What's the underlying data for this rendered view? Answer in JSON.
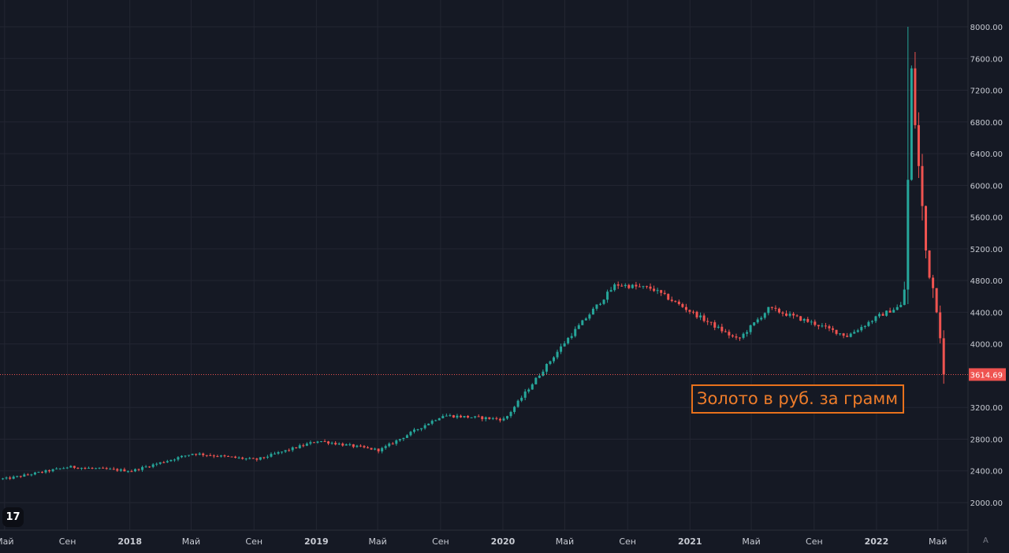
{
  "chart_data": {
    "type": "candlestick",
    "title": "",
    "annotation": "Золото в руб. за грамм",
    "y_ticks": [
      "8000.00",
      "7600.00",
      "7200.00",
      "6800.00",
      "6400.00",
      "6000.00",
      "5600.00",
      "5200.00",
      "4800.00",
      "4400.00",
      "4000.00",
      "3200.00",
      "2800.00",
      "2400.00",
      "2000.00"
    ],
    "y_tick_values": [
      8000,
      7600,
      7200,
      6800,
      6400,
      6000,
      5600,
      5200,
      4800,
      4400,
      4000,
      3200,
      2800,
      2400,
      2000
    ],
    "ylim": [
      1700,
      8300
    ],
    "x_ticks": [
      {
        "label": "Май",
        "date": "2017-05-01"
      },
      {
        "label": "Сен",
        "date": "2017-09-01"
      },
      {
        "label": "2018",
        "date": "2018-01-01"
      },
      {
        "label": "Май",
        "date": "2018-05-01"
      },
      {
        "label": "Сен",
        "date": "2018-09-01"
      },
      {
        "label": "2019",
        "date": "2019-01-01"
      },
      {
        "label": "Май",
        "date": "2019-05-01"
      },
      {
        "label": "Сен",
        "date": "2019-09-01"
      },
      {
        "label": "2020",
        "date": "2020-01-01"
      },
      {
        "label": "Май",
        "date": "2020-05-01"
      },
      {
        "label": "Сен",
        "date": "2020-09-01"
      },
      {
        "label": "2021",
        "date": "2021-01-01"
      },
      {
        "label": "Май",
        "date": "2021-05-01"
      },
      {
        "label": "Сен",
        "date": "2021-09-01"
      },
      {
        "label": "2022",
        "date": "2022-01-01"
      },
      {
        "label": "Май",
        "date": "2022-05-01"
      }
    ],
    "x_range": [
      "2017-04-22",
      "2022-06-29"
    ],
    "last_price": "3614.69",
    "last_price_value": 3614.69,
    "key_points": [
      {
        "date": "2017-04-30",
        "close": 2300
      },
      {
        "date": "2017-09-01",
        "close": 2450
      },
      {
        "date": "2018-01-01",
        "close": 2400
      },
      {
        "date": "2018-05-01",
        "close": 2620
      },
      {
        "date": "2018-09-01",
        "close": 2540
      },
      {
        "date": "2019-01-01",
        "close": 2780
      },
      {
        "date": "2019-05-01",
        "close": 2660
      },
      {
        "date": "2019-09-01",
        "close": 3100
      },
      {
        "date": "2020-01-01",
        "close": 3050
      },
      {
        "date": "2020-03-01",
        "close": 3550
      },
      {
        "date": "2020-05-01",
        "close": 4050
      },
      {
        "date": "2020-08-05",
        "close": 4750
      },
      {
        "date": "2020-10-15",
        "close": 4700
      },
      {
        "date": "2021-01-01",
        "close": 4400
      },
      {
        "date": "2021-04-01",
        "close": 4050
      },
      {
        "date": "2021-06-01",
        "close": 4450
      },
      {
        "date": "2021-09-01",
        "close": 4250
      },
      {
        "date": "2021-11-01",
        "close": 4100
      },
      {
        "date": "2022-01-01",
        "close": 4350
      },
      {
        "date": "2022-02-20",
        "close": 4500
      },
      {
        "date": "2022-03-07",
        "close": 7400
      },
      {
        "date": "2022-03-20",
        "close": 6300
      },
      {
        "date": "2022-04-05",
        "close": 5100
      },
      {
        "date": "2022-04-25",
        "close": 4500
      },
      {
        "date": "2022-05-05",
        "close": 4000
      },
      {
        "date": "2022-05-12",
        "close": 3614.69
      }
    ],
    "spikes": [
      {
        "date": "2022-03-03",
        "high": 8000
      }
    ],
    "colors": {
      "background": "#151924",
      "grid": "#232632",
      "up": "#26a69a",
      "down": "#ef5350",
      "price_line": "#ef5350",
      "annotation": "#e8711c",
      "axis_text": "#c8cbd3"
    },
    "grid": true
  },
  "ui": {
    "logo": "17",
    "auto_button": "A"
  }
}
